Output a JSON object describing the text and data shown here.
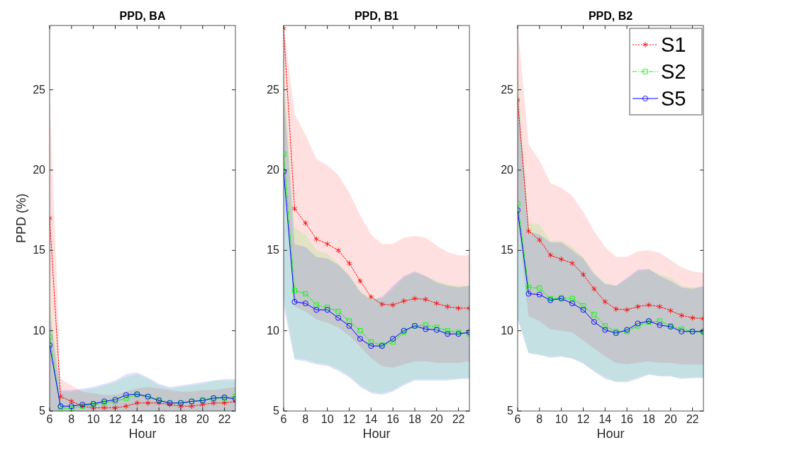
{
  "chart_data": [
    {
      "type": "line",
      "title": "PPD, BA",
      "xlabel": "Hour",
      "ylabel": "PPD (%)",
      "x": [
        6,
        7,
        8,
        9,
        10,
        11,
        12,
        13,
        14,
        15,
        16,
        17,
        18,
        19,
        20,
        21,
        22,
        23
      ],
      "xlim": [
        6,
        23
      ],
      "ylim": [
        5,
        29
      ],
      "xticks": [
        6,
        8,
        10,
        12,
        14,
        16,
        18,
        20,
        22
      ],
      "yticks": [
        5,
        10,
        15,
        20,
        25
      ],
      "legend": false,
      "series": [
        {
          "color": "#ff0000",
          "marker": "cross",
          "line_style": "dotted",
          "values": [
            17.0,
            5.9,
            5.6,
            5.3,
            5.2,
            5.2,
            5.2,
            5.3,
            5.5,
            5.5,
            5.5,
            5.4,
            5.3,
            5.3,
            5.4,
            5.5,
            5.5,
            5.6
          ],
          "lower": [
            5,
            5,
            5,
            5,
            5,
            5,
            5,
            5,
            5,
            5,
            5,
            5,
            5,
            5,
            5,
            5,
            5,
            5
          ],
          "upper": [
            24.5,
            7.0,
            6.6,
            6.2,
            6.1,
            6.0,
            6.0,
            6.2,
            6.4,
            6.5,
            6.4,
            6.3,
            6.2,
            6.2,
            6.3,
            6.3,
            6.4,
            6.5
          ]
        },
        {
          "color": "#00ff00",
          "marker": "square",
          "line_style": "dashed",
          "values": [
            9.6,
            5.2,
            5.15,
            5.3,
            5.4,
            5.5,
            5.6,
            5.8,
            6.0,
            5.9,
            5.7,
            5.5,
            5.5,
            5.6,
            5.7,
            5.8,
            5.8,
            5.9
          ],
          "lower": [
            5,
            5,
            5,
            5,
            5,
            5,
            5,
            5,
            5,
            5,
            5,
            5,
            5,
            5,
            5,
            5,
            5,
            5
          ],
          "upper": [
            12,
            6.2,
            6.2,
            6.3,
            6.4,
            6.6,
            6.8,
            7.1,
            7.3,
            7.0,
            6.6,
            6.4,
            6.5,
            6.6,
            6.7,
            6.9,
            6.9,
            6.9
          ]
        },
        {
          "color": "#0000ff",
          "marker": "circle",
          "line_style": "solid",
          "values": [
            9.1,
            5.3,
            5.3,
            5.4,
            5.45,
            5.6,
            5.7,
            6.0,
            6.05,
            5.9,
            5.65,
            5.5,
            5.5,
            5.6,
            5.65,
            5.8,
            5.85,
            5.75
          ],
          "lower": [
            5,
            5,
            5,
            5,
            5,
            5,
            5,
            5,
            5,
            5,
            5,
            5,
            5,
            5,
            5,
            5,
            5,
            5
          ],
          "upper": [
            11,
            6.3,
            6.3,
            6.4,
            6.5,
            6.7,
            6.9,
            7.3,
            7.4,
            7.1,
            6.7,
            6.5,
            6.6,
            6.7,
            6.8,
            6.9,
            7.0,
            7.0
          ]
        }
      ]
    },
    {
      "type": "line",
      "title": "PPD, B1",
      "xlabel": "Hour",
      "x": [
        6,
        7,
        8,
        9,
        10,
        11,
        12,
        13,
        14,
        15,
        16,
        17,
        18,
        19,
        20,
        21,
        22,
        23
      ],
      "xlim": [
        6,
        23
      ],
      "ylim": [
        5,
        29
      ],
      "xticks": [
        6,
        8,
        10,
        12,
        14,
        16,
        18,
        20,
        22
      ],
      "yticks": [
        5,
        10,
        15,
        20,
        25
      ],
      "legend": false,
      "series": [
        {
          "color": "#ff0000",
          "marker": "cross",
          "line_style": "dotted",
          "values": [
            28.8,
            17.6,
            16.7,
            15.7,
            15.4,
            15.0,
            14.2,
            13.1,
            12.1,
            11.65,
            11.6,
            11.85,
            12.0,
            11.95,
            11.7,
            11.5,
            11.4,
            11.4
          ],
          "lower": [
            20,
            11.5,
            11.2,
            10.7,
            10.5,
            10.2,
            9.7,
            9.0,
            8.3,
            7.8,
            7.7,
            7.9,
            8.1,
            8.1,
            8.0,
            8.0,
            8.0,
            8.1
          ],
          "upper": [
            29,
            23.5,
            22.2,
            20.7,
            20.3,
            19.7,
            18.6,
            17.2,
            16.0,
            15.4,
            15.4,
            15.8,
            15.9,
            15.8,
            15.3,
            14.9,
            14.7,
            14.7
          ]
        },
        {
          "color": "#00ff00",
          "marker": "square",
          "line_style": "dashed",
          "values": [
            21.0,
            12.5,
            12.3,
            11.6,
            11.45,
            11.2,
            10.6,
            10.0,
            9.3,
            9.1,
            9.3,
            9.9,
            10.3,
            10.35,
            10.2,
            10.0,
            9.9,
            9.8
          ],
          "lower": [
            12,
            8.3,
            8.2,
            8.0,
            7.9,
            7.6,
            7.2,
            6.6,
            6.2,
            6.1,
            6.3,
            6.7,
            7.0,
            7.0,
            7.0,
            7.0,
            7.0,
            7.1
          ],
          "upper": [
            26,
            16.4,
            16.0,
            15.0,
            14.8,
            14.2,
            13.5,
            12.5,
            12.0,
            12.0,
            12.6,
            13.3,
            13.6,
            13.4,
            13.1,
            12.9,
            12.8,
            12.8
          ]
        },
        {
          "color": "#0000ff",
          "marker": "circle",
          "line_style": "solid",
          "values": [
            19.9,
            11.8,
            11.7,
            11.3,
            11.3,
            10.8,
            10.3,
            9.5,
            9.05,
            9.05,
            9.5,
            10.0,
            10.3,
            10.1,
            10.05,
            9.8,
            9.8,
            9.9
          ],
          "lower": [
            11.5,
            8.2,
            8.1,
            7.9,
            7.8,
            7.5,
            7.1,
            6.5,
            6.1,
            6.0,
            6.2,
            6.6,
            6.9,
            6.9,
            6.9,
            6.9,
            7.0,
            7.0
          ],
          "upper": [
            25,
            15.4,
            15.2,
            14.6,
            14.5,
            14.1,
            13.4,
            12.4,
            11.9,
            12.1,
            12.8,
            13.4,
            13.7,
            13.4,
            13.0,
            12.8,
            12.7,
            12.8
          ]
        }
      ]
    },
    {
      "type": "line",
      "title": "PPD, B2",
      "xlabel": "Hour",
      "x": [
        6,
        7,
        8,
        9,
        10,
        11,
        12,
        13,
        14,
        15,
        16,
        17,
        18,
        19,
        20,
        21,
        22,
        23
      ],
      "xlim": [
        6,
        23
      ],
      "ylim": [
        5,
        29
      ],
      "xticks": [
        6,
        8,
        10,
        12,
        14,
        16,
        18,
        20,
        22
      ],
      "yticks": [
        5,
        10,
        15,
        20,
        25
      ],
      "legend": "top right",
      "series": [
        {
          "name": "S1",
          "color": "#ff0000",
          "marker": "cross",
          "line_style": "dotted",
          "values": [
            24.35,
            16.2,
            15.65,
            14.7,
            14.45,
            14.2,
            13.5,
            12.6,
            11.8,
            11.35,
            11.3,
            11.5,
            11.6,
            11.5,
            11.25,
            10.95,
            10.8,
            10.75
          ],
          "lower": [
            17,
            10.9,
            10.6,
            10.1,
            10.0,
            9.9,
            9.4,
            8.9,
            8.4,
            8.0,
            7.9,
            8.0,
            8.1,
            8.0,
            8.0,
            7.9,
            7.9,
            7.9
          ],
          "upper": [
            29,
            21.6,
            20.6,
            19.2,
            18.9,
            18.4,
            17.4,
            16.2,
            15.2,
            14.6,
            14.6,
            14.95,
            15.0,
            14.85,
            14.4,
            13.95,
            13.7,
            13.6
          ]
        },
        {
          "name": "S2",
          "color": "#00ff00",
          "marker": "square",
          "line_style": "dashed",
          "values": [
            17.9,
            12.7,
            12.65,
            12.0,
            12.05,
            12.0,
            11.55,
            11.0,
            10.3,
            9.95,
            9.95,
            10.3,
            10.55,
            10.6,
            10.3,
            10.1,
            9.95,
            9.9
          ],
          "lower": [
            10.8,
            8.6,
            8.5,
            8.4,
            8.4,
            8.3,
            8.0,
            7.5,
            7.1,
            6.85,
            6.85,
            7.1,
            7.3,
            7.2,
            7.2,
            7.05,
            7.1,
            7.1
          ],
          "upper": [
            26,
            16.7,
            16.6,
            15.6,
            15.6,
            15.2,
            14.6,
            13.6,
            13.0,
            12.8,
            13.2,
            13.7,
            13.8,
            13.5,
            13.3,
            12.8,
            12.7,
            12.7
          ]
        },
        {
          "name": "S5",
          "color": "#0000ff",
          "marker": "circle",
          "line_style": "solid",
          "values": [
            17.5,
            12.3,
            12.25,
            11.9,
            12.0,
            11.7,
            11.3,
            10.55,
            10.05,
            9.85,
            10.05,
            10.45,
            10.6,
            10.35,
            10.25,
            9.95,
            9.95,
            9.95
          ],
          "lower": [
            10.7,
            8.6,
            8.5,
            8.3,
            8.4,
            8.25,
            7.95,
            7.45,
            7.0,
            6.8,
            6.8,
            7.0,
            7.25,
            7.15,
            7.15,
            7.0,
            7.05,
            7.05
          ],
          "upper": [
            25,
            16.2,
            16.0,
            15.5,
            15.5,
            15.0,
            14.5,
            13.5,
            12.9,
            12.8,
            13.3,
            13.8,
            13.85,
            13.4,
            13.1,
            12.7,
            12.6,
            12.8
          ]
        }
      ]
    }
  ]
}
